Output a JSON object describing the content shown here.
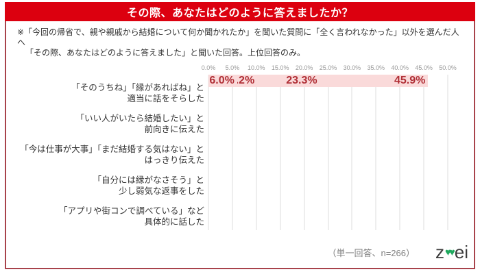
{
  "header": {
    "title": "その際、あなたはどのように答えましたか？"
  },
  "note": {
    "line1": "※「今回の帰省で、親や親戚から結婚について何か聞かれたか」を聞いた質問に「全く言われなかった」以外を選んだ人へ",
    "line2": "「その際、あなたはどのように答えました」と聞いた回答。上位回答のみ。"
  },
  "chart_data": {
    "type": "bar",
    "orientation": "horizontal",
    "categories": [
      "「そのうちね」「縁があればね」と\n適当に話をそらした",
      "「いい人がいたら結婚したい」と\n前向きに伝えた",
      "「今は仕事が大事」「まだ結婚する気はない」と\nはっきり伝えた",
      "「自分には縁がなさそう」と\n少し弱気な返事をした",
      "「アプリや街コンで調べている」など\n具体的に話した"
    ],
    "values": [
      45.9,
      23.3,
      10.2,
      10.2,
      6.0
    ],
    "value_labels": [
      "45.9%",
      "23.3%",
      "10.2%",
      "10.2%",
      "6.0%"
    ],
    "x_ticks": [
      "0.0%",
      "5.0%",
      "10.0%",
      "15.0%",
      "20.0%",
      "25.0%",
      "30.0%",
      "35.0%",
      "40.0%",
      "45.0%",
      "50.0%"
    ],
    "xlim": [
      0,
      50
    ],
    "grid": true,
    "legend_position": "none",
    "bar_color": "#fadada",
    "value_label_color": "#b02f36",
    "title": "その際、あなたはどのように答えましたか？",
    "xlabel": "",
    "ylabel": ""
  },
  "footer": {
    "sample_note": "（単一回答、n=266）",
    "logo": {
      "name": "zwei",
      "part_z": "z",
      "hearts": "♥♥",
      "part_ei": "ei",
      "heart_color": "#1fa95e"
    }
  },
  "colors": {
    "header_red": "#dc000f",
    "frame_border": "#a8434b",
    "grid": "#dedede",
    "tick_text": "#999999",
    "body_text": "#333333"
  }
}
